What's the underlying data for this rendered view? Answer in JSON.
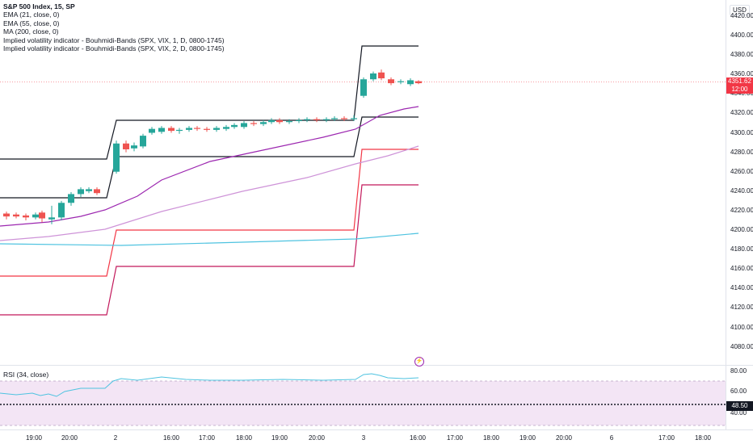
{
  "legend": {
    "title": "S&P 500 Index, 15, SP",
    "lines": [
      "EMA (21, close, 0)",
      "EMA (55, close, 0)",
      "MA (200, close, 0)",
      "Implied volatility indicator - Bouhmidi-Bands (SPX, VIX, 1, D, 0800-1745)",
      "Implied volatility indicator - Bouhmidi-Bands (SPX, VIX, 2, D, 0800-1745)"
    ]
  },
  "currency": "USD",
  "price_axis": [
    "4420.00",
    "4400.00",
    "4380.00",
    "4360.00",
    "4340.00",
    "4320.00",
    "4300.00",
    "4280.00",
    "4260.00",
    "4240.00",
    "4220.00",
    "4200.00",
    "4180.00",
    "4160.00",
    "4140.00",
    "4120.00",
    "4100.00",
    "4080.00"
  ],
  "last_price": {
    "value": "4351.62",
    "countdown": "12:00"
  },
  "rsi": {
    "label": "RSI (34, close)",
    "axis": [
      "80.00",
      "60.00",
      "40.00"
    ],
    "value": "48.50"
  },
  "time_axis": [
    "19:00",
    "20:00",
    "2",
    "16:00",
    "17:00",
    "18:00",
    "19:00",
    "20:00",
    "3",
    "16:00",
    "17:00",
    "18:00",
    "19:00",
    "20:00",
    "6",
    "17:00",
    "18:00"
  ],
  "colors": {
    "up": "#26a69a",
    "down": "#ef5350",
    "ema21": "#9c27b0",
    "ema55": "#ce93d8",
    "ma200": "#4ec3e0",
    "band1": "#131722",
    "band2_upper": "#f23645",
    "band2_lower": "#c2185b"
  }
}
